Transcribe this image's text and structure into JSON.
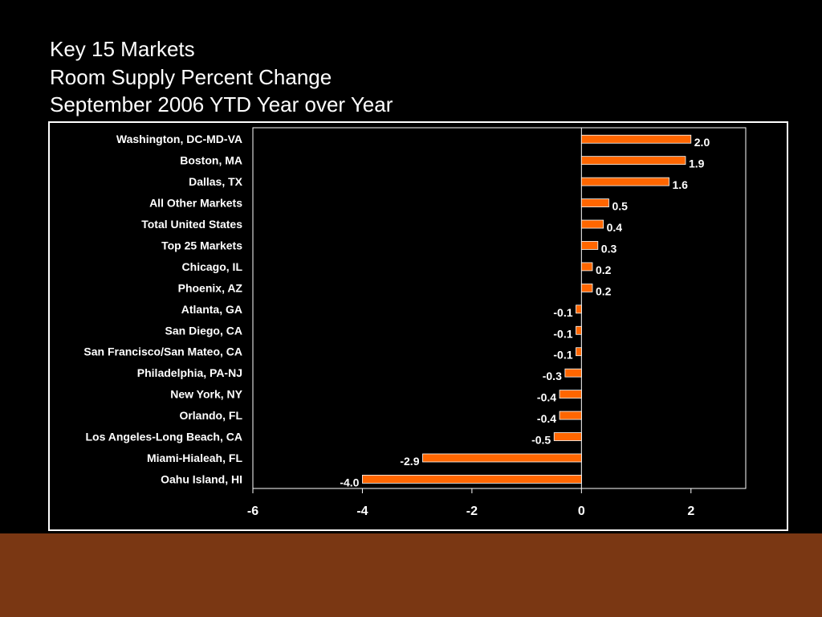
{
  "slide": {
    "title_lines": [
      "Key 15 Markets",
      "Room Supply Percent Change",
      "September 2006 YTD Year over Year"
    ],
    "background_color": "#000000",
    "footer_color": "#7a3713"
  },
  "chart_data": {
    "type": "bar",
    "orientation": "horizontal",
    "categories": [
      "Washington, DC-MD-VA",
      "Boston, MA",
      "Dallas, TX",
      "All Other Markets",
      "Total United States",
      "Top 25 Markets",
      "Chicago, IL",
      "Phoenix, AZ",
      "Atlanta, GA",
      "San Diego, CA",
      "San Francisco/San Mateo, CA",
      "Philadelphia, PA-NJ",
      "New York, NY",
      "Orlando, FL",
      "Los Angeles-Long Beach, CA",
      "Miami-Hialeah, FL",
      "Oahu Island, HI"
    ],
    "values": [
      2.0,
      1.9,
      1.6,
      0.5,
      0.4,
      0.3,
      0.2,
      0.2,
      -0.1,
      -0.1,
      -0.1,
      -0.3,
      -0.4,
      -0.4,
      -0.5,
      -2.9,
      -4.0
    ],
    "value_labels": [
      "2.0",
      "1.9",
      "1.6",
      "0.5",
      "0.4",
      "0.3",
      "0.2",
      "0.2",
      "-0.1",
      "-0.1",
      "-0.1",
      "-0.3",
      "-0.4",
      "-0.4",
      "-0.5",
      "-2.9",
      "-4.0"
    ],
    "xlim": [
      -6,
      3
    ],
    "xticks": [
      -6,
      -4,
      -2,
      0,
      2
    ],
    "xtick_labels": [
      "-6",
      "-4",
      "-2",
      "0",
      "2"
    ],
    "title": "",
    "xlabel": "",
    "ylabel": "",
    "grid": false,
    "bar_color": "#ff6600",
    "bar_edge_color": "#ffffff",
    "text_color": "#ffffff"
  }
}
